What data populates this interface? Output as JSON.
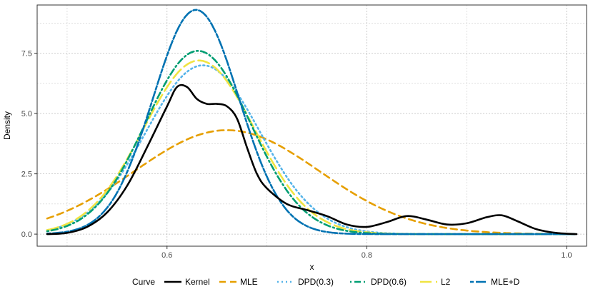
{
  "chart_data": {
    "type": "line",
    "title": "",
    "xlabel": "x",
    "ylabel": "Density",
    "xlim": [
      0.47,
      1.02
    ],
    "ylim": [
      -0.5,
      9.5
    ],
    "x_ticks": [
      0.6,
      0.8,
      1.0
    ],
    "x_tick_labels": [
      "0.6",
      "0.8",
      "1.0"
    ],
    "x_minor_ticks": [
      0.5,
      0.7,
      0.9
    ],
    "y_ticks": [
      0.0,
      2.5,
      5.0,
      7.5
    ],
    "y_tick_labels": [
      "0.0",
      "2.5",
      "5.0",
      "7.5"
    ],
    "y_minor_ticks": [
      1.25,
      3.75,
      6.25,
      8.75
    ],
    "grid": true,
    "legend": {
      "title": "Curve",
      "position": "bottom"
    },
    "series": [
      {
        "name": "Kernel",
        "label": "Kernel",
        "color": "#000000",
        "dash": "solid",
        "x": [
          0.48,
          0.5,
          0.52,
          0.54,
          0.56,
          0.58,
          0.6,
          0.61,
          0.62,
          0.63,
          0.64,
          0.65,
          0.66,
          0.67,
          0.68,
          0.69,
          0.7,
          0.72,
          0.74,
          0.76,
          0.78,
          0.8,
          0.82,
          0.84,
          0.86,
          0.88,
          0.9,
          0.92,
          0.935,
          0.95,
          0.97,
          0.99,
          1.01
        ],
        "y": [
          0.0,
          0.05,
          0.3,
          0.9,
          2.0,
          3.6,
          5.3,
          6.1,
          6.1,
          5.6,
          5.4,
          5.4,
          5.3,
          4.8,
          3.6,
          2.5,
          1.9,
          1.25,
          1.0,
          0.75,
          0.4,
          0.3,
          0.5,
          0.75,
          0.6,
          0.4,
          0.45,
          0.7,
          0.78,
          0.55,
          0.2,
          0.05,
          0.0
        ]
      },
      {
        "name": "MLE",
        "label": "MLE",
        "color": "#E69F00",
        "dash": "dashed",
        "mu": 0.66,
        "sigma": 0.0925,
        "peak": 4.31
      },
      {
        "name": "DPD(0.3)",
        "label": "DPD(0.3)",
        "color": "#56B4E9",
        "dash": "dotted",
        "mu": 0.636,
        "sigma": 0.057,
        "peak": 7.0
      },
      {
        "name": "DPD(0.6)",
        "label": "DPD(0.6)",
        "color": "#009E73",
        "dash": "dotdash",
        "mu": 0.631,
        "sigma": 0.0525,
        "peak": 7.6
      },
      {
        "name": "L2",
        "label": "L2",
        "color": "#F0E442",
        "dash": "longdash",
        "mu": 0.632,
        "sigma": 0.0555,
        "peak": 7.2
      },
      {
        "name": "MLE+D",
        "label": "MLE+D",
        "color": "#0072B2",
        "dash": "twodash",
        "mu": 0.629,
        "sigma": 0.043,
        "peak": 9.3
      }
    ]
  }
}
